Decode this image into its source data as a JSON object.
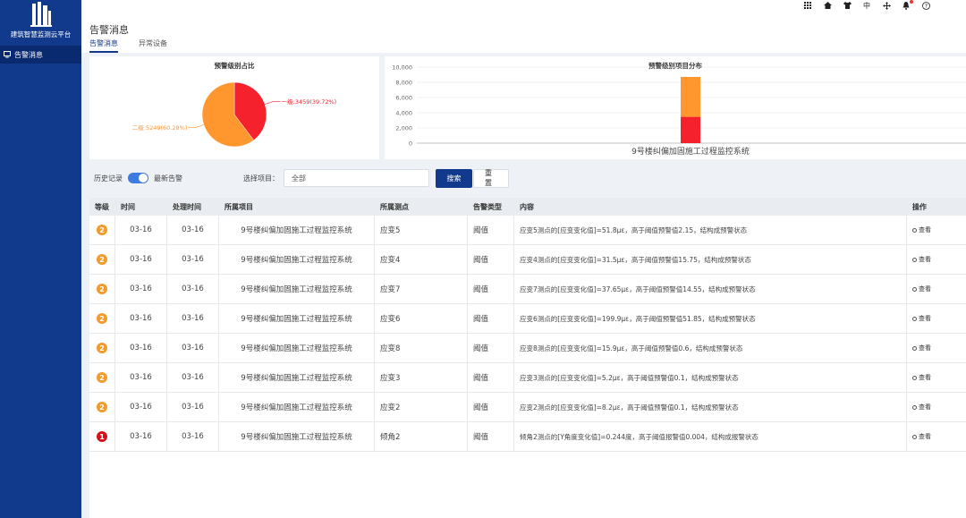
{
  "app": {
    "brand": "建筑智慧监测云平台"
  },
  "sidebar": {
    "items": [
      {
        "label": "告警消息"
      }
    ]
  },
  "topbar": {
    "icons": [
      "grid-icon",
      "home-icon",
      "shirt-icon",
      "language-icon",
      "move-icon",
      "bell-icon",
      "help-icon"
    ],
    "lang_label": "中"
  },
  "header": {
    "title": "告警消息",
    "tabs": [
      {
        "label": "告警消息",
        "active": true
      },
      {
        "label": "异常设备",
        "active": false
      }
    ]
  },
  "pie_panel": {
    "title": "预警级别占比"
  },
  "bar_panel": {
    "title": "预警级别项目分布"
  },
  "chart_data": [
    {
      "type": "pie",
      "title": "预警级别占比",
      "slices": [
        {
          "name": "一级",
          "value": 3459,
          "percent": 39.72,
          "label": "一级:3459(39.72%)",
          "color": "#f5222d"
        },
        {
          "name": "二级",
          "value": 5249,
          "percent": 60.28,
          "label": "二级:5249(60.28%)",
          "color": "#ff962e"
        }
      ]
    },
    {
      "type": "bar",
      "stacked": true,
      "title": "预警级别项目分布",
      "categories": [
        "9号楼纠偏加固施工过程监控系统"
      ],
      "series": [
        {
          "values": [
            3459
          ],
          "color": "#f5222d"
        },
        {
          "values": [
            5249
          ],
          "color": "#ff962e"
        }
      ],
      "yticks": [
        "0",
        "2,000",
        "4,000",
        "6,000",
        "8,000",
        "10,000"
      ],
      "ylim": [
        0,
        10000
      ]
    }
  ],
  "filter": {
    "history_label": "历史记录",
    "latest_label": "最新告警",
    "select_label": "选择项目：",
    "select_value": "全部",
    "search_label": "搜索",
    "reset_label": "重置"
  },
  "table": {
    "columns": [
      "等级",
      "时间",
      "处理时间",
      "所属项目",
      "所属测点",
      "告警类型",
      "内容",
      "操作"
    ],
    "rows": [
      {
        "level": "2",
        "time": "03-16",
        "handle_time": "03-16",
        "project": "9号楼纠偏加固施工过程监控系统",
        "point": "应变5",
        "type": "阈值",
        "content": "应变5测点的[应变变化值]=51.8με，高于阈值预警值2.15，结构成预警状态",
        "action": "查看"
      },
      {
        "level": "2",
        "time": "03-16",
        "handle_time": "03-16",
        "project": "9号楼纠偏加固施工过程监控系统",
        "point": "应变4",
        "type": "阈值",
        "content": "应变4测点的[应变变化值]=31.5με，高于阈值预警值15.75，结构成预警状态",
        "action": "查看"
      },
      {
        "level": "2",
        "time": "03-16",
        "handle_time": "03-16",
        "project": "9号楼纠偏加固施工过程监控系统",
        "point": "应变7",
        "type": "阈值",
        "content": "应变7测点的[应变变化值]=37.65με，高于阈值预警值14.55，结构成预警状态",
        "action": "查看"
      },
      {
        "level": "2",
        "time": "03-16",
        "handle_time": "03-16",
        "project": "9号楼纠偏加固施工过程监控系统",
        "point": "应变6",
        "type": "阈值",
        "content": "应变6测点的[应变变化值]=199.9με，高于阈值预警值51.85，结构成预警状态",
        "action": "查看"
      },
      {
        "level": "2",
        "time": "03-16",
        "handle_time": "03-16",
        "project": "9号楼纠偏加固施工过程监控系统",
        "point": "应变8",
        "type": "阈值",
        "content": "应变8测点的[应变变化值]=15.9με，高于阈值预警值0.6，结构成预警状态",
        "action": "查看"
      },
      {
        "level": "2",
        "time": "03-16",
        "handle_time": "03-16",
        "project": "9号楼纠偏加固施工过程监控系统",
        "point": "应变3",
        "type": "阈值",
        "content": "应变3测点的[应变变化值]=5.2με，高于阈值预警值0.1，结构成预警状态",
        "action": "查看"
      },
      {
        "level": "2",
        "time": "03-16",
        "handle_time": "03-16",
        "project": "9号楼纠偏加固施工过程监控系统",
        "point": "应变2",
        "type": "阈值",
        "content": "应变2测点的[应变变化值]=8.2με，高于阈值预警值0.1，结构成预警状态",
        "action": "查看"
      },
      {
        "level": "1",
        "time": "03-16",
        "handle_time": "03-16",
        "project": "9号楼纠偏加固施工过程监控系统",
        "point": "倾角2",
        "type": "阈值",
        "content": "倾角2测点的[Y角度变化值]=0.244度，高于阈值报警值0.004，结构成报警状态",
        "action": "查看"
      }
    ]
  }
}
